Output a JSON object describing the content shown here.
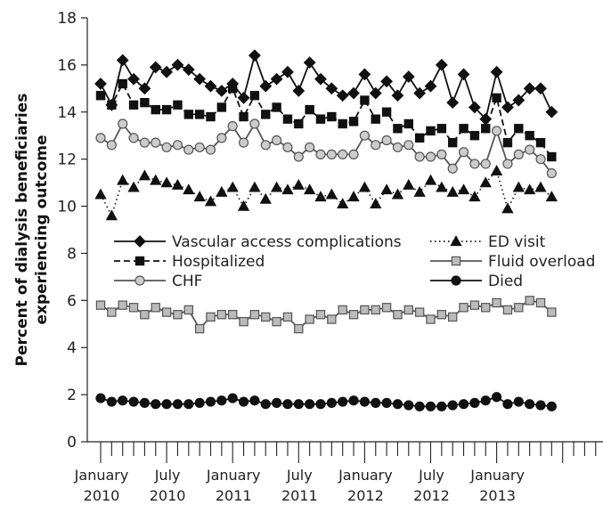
{
  "chart_data": {
    "type": "line",
    "title": "",
    "xlabel": "",
    "ylabel": [
      "Percent of dialysis beneficiaries",
      "experiencing outcome"
    ],
    "ylim": [
      0,
      18
    ],
    "yticks": [
      0,
      2,
      4,
      6,
      8,
      10,
      12,
      14,
      16,
      18
    ],
    "xlim": [
      0,
      47
    ],
    "x_start_month": "January 2010",
    "xtick_labels": [
      {
        "month": "January",
        "year": "2010"
      },
      {
        "month": "July",
        "year": "2010"
      },
      {
        "month": "January",
        "year": "2011"
      },
      {
        "month": "July",
        "year": "2011"
      },
      {
        "month": "January",
        "year": "2012"
      },
      {
        "month": "July",
        "year": "2012"
      },
      {
        "month": "January",
        "year": "2013"
      }
    ],
    "grid": false,
    "legend_placement": "middle",
    "series": [
      {
        "name": "Vascular access complications",
        "marker": "diamond",
        "line": "solid",
        "color": "#111111",
        "fill": "#111111",
        "values": [
          15.2,
          14.3,
          16.2,
          15.4,
          15.0,
          15.9,
          15.7,
          16.0,
          15.8,
          15.4,
          15.1,
          14.9,
          15.2,
          14.6,
          16.4,
          15.1,
          15.4,
          15.7,
          14.9,
          16.1,
          15.4,
          15.0,
          14.7,
          14.8,
          15.6,
          14.8,
          15.3,
          14.7,
          15.5,
          14.8,
          15.1,
          16.0,
          14.4,
          15.6,
          14.2,
          13.7,
          15.7,
          14.2,
          14.5,
          15.0,
          15.0,
          14.0
        ]
      },
      {
        "name": "Hospitalized",
        "marker": "square",
        "line": "dashed",
        "color": "#111111",
        "fill": "#111111",
        "values": [
          14.7,
          14.3,
          15.2,
          14.3,
          14.4,
          14.1,
          14.1,
          14.3,
          13.9,
          13.9,
          13.8,
          14.2,
          15.0,
          13.8,
          14.7,
          13.9,
          14.2,
          13.7,
          13.5,
          14.1,
          13.7,
          13.8,
          13.5,
          13.6,
          14.5,
          13.7,
          14.0,
          13.3,
          13.5,
          12.9,
          13.2,
          13.3,
          12.7,
          13.3,
          13.0,
          13.3,
          14.6,
          12.7,
          13.3,
          13.0,
          12.7,
          12.1
        ]
      },
      {
        "name": "CHF",
        "marker": "circle",
        "line": "solid",
        "color": "#555555",
        "fill": "#cccccc",
        "values": [
          12.9,
          12.6,
          13.5,
          12.9,
          12.7,
          12.7,
          12.5,
          12.6,
          12.4,
          12.5,
          12.4,
          12.9,
          13.4,
          12.7,
          13.5,
          12.6,
          12.8,
          12.5,
          12.1,
          12.5,
          12.2,
          12.2,
          12.2,
          12.2,
          13.0,
          12.6,
          12.8,
          12.5,
          12.6,
          12.1,
          12.1,
          12.2,
          11.6,
          12.3,
          11.8,
          11.8,
          13.2,
          11.8,
          12.2,
          12.4,
          12.0,
          11.4
        ]
      },
      {
        "name": "ED visit",
        "marker": "triangle",
        "line": "dotted",
        "color": "#111111",
        "fill": "#111111",
        "values": [
          10.5,
          9.6,
          11.1,
          10.8,
          11.3,
          11.1,
          11.0,
          10.9,
          10.7,
          10.4,
          10.2,
          10.6,
          10.8,
          10.0,
          10.8,
          10.3,
          10.8,
          10.7,
          10.9,
          10.7,
          10.4,
          10.5,
          10.1,
          10.4,
          10.8,
          10.1,
          10.7,
          10.5,
          10.9,
          10.6,
          11.1,
          10.8,
          10.6,
          10.7,
          10.4,
          11.0,
          11.5,
          9.9,
          10.8,
          10.7,
          10.8,
          10.4
        ]
      },
      {
        "name": "Fluid overload",
        "marker": "square",
        "line": "solid",
        "color": "#555555",
        "fill": "#bbbbbb",
        "values": [
          5.8,
          5.5,
          5.8,
          5.7,
          5.4,
          5.7,
          5.5,
          5.4,
          5.6,
          4.8,
          5.3,
          5.4,
          5.4,
          5.1,
          5.4,
          5.3,
          5.1,
          5.3,
          4.8,
          5.2,
          5.4,
          5.2,
          5.6,
          5.4,
          5.6,
          5.6,
          5.7,
          5.4,
          5.6,
          5.5,
          5.2,
          5.4,
          5.3,
          5.7,
          5.8,
          5.7,
          5.9,
          5.6,
          5.7,
          6.0,
          5.9,
          5.5
        ]
      },
      {
        "name": "Died",
        "marker": "circle",
        "line": "solid",
        "color": "#111111",
        "fill": "#111111",
        "values": [
          1.85,
          1.7,
          1.75,
          1.7,
          1.65,
          1.6,
          1.6,
          1.6,
          1.6,
          1.65,
          1.7,
          1.75,
          1.85,
          1.7,
          1.75,
          1.6,
          1.65,
          1.6,
          1.6,
          1.6,
          1.6,
          1.65,
          1.7,
          1.75,
          1.7,
          1.65,
          1.65,
          1.6,
          1.55,
          1.5,
          1.5,
          1.5,
          1.55,
          1.6,
          1.65,
          1.75,
          1.9,
          1.6,
          1.7,
          1.6,
          1.55,
          1.5
        ]
      }
    ]
  }
}
